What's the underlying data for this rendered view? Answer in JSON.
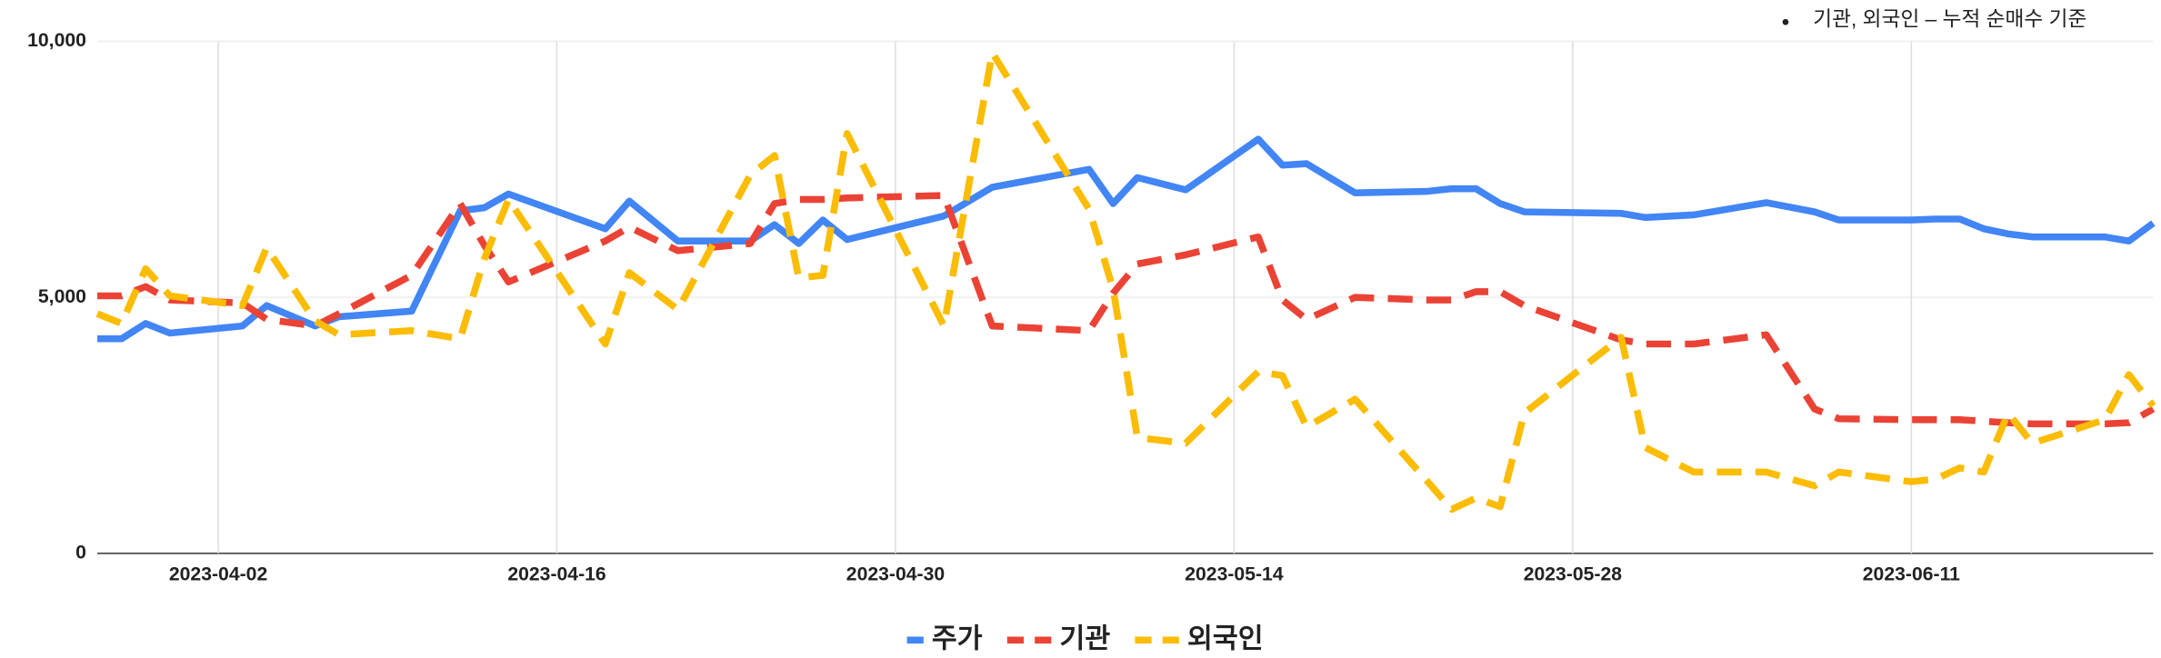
{
  "chart_data": {
    "type": "line",
    "annotation": "기관, 외국인 – 누적 순매수 기준",
    "x": [
      "2023-03-28",
      "2023-03-29",
      "2023-03-30",
      "2023-03-31",
      "2023-04-03",
      "2023-04-04",
      "2023-04-06",
      "2023-04-07",
      "2023-04-10",
      "2023-04-12",
      "2023-04-13",
      "2023-04-14",
      "2023-04-18",
      "2023-04-19",
      "2023-04-21",
      "2023-04-24",
      "2023-04-25",
      "2023-04-26",
      "2023-04-27",
      "2023-04-28",
      "2023-05-02",
      "2023-05-04",
      "2023-05-08",
      "2023-05-09",
      "2023-05-10",
      "2023-05-12",
      "2023-05-15",
      "2023-05-16",
      "2023-05-17",
      "2023-05-19",
      "2023-05-22",
      "2023-05-23",
      "2023-05-24",
      "2023-05-25",
      "2023-05-26",
      "2023-05-30",
      "2023-05-31",
      "2023-06-02",
      "2023-06-05",
      "2023-06-07",
      "2023-06-08",
      "2023-06-11",
      "2023-06-12",
      "2023-06-13",
      "2023-06-14",
      "2023-06-15",
      "2023-06-16",
      "2023-06-19",
      "2023-06-20",
      "2023-06-21"
    ],
    "series": [
      {
        "name": "주가",
        "color": "#4285f4",
        "dashed": false,
        "values": [
          4190,
          4190,
          4490,
          4300,
          4440,
          4840,
          4440,
          4620,
          4730,
          6690,
          6750,
          7020,
          6340,
          6880,
          6100,
          6100,
          6420,
          6050,
          6510,
          6130,
          6590,
          7150,
          7500,
          6830,
          7340,
          7100,
          8090,
          7580,
          7610,
          7040,
          7070,
          7120,
          7120,
          6830,
          6670,
          6640,
          6560,
          6610,
          6850,
          6670,
          6510,
          6510,
          6530,
          6530,
          6340,
          6240,
          6180,
          6180,
          6100,
          6450
        ]
      },
      {
        "name": "기관",
        "color": "#ea4335",
        "dashed": true,
        "values": [
          5030,
          5030,
          5210,
          4950,
          4890,
          4570,
          4440,
          4680,
          5430,
          6830,
          6020,
          5300,
          6100,
          6370,
          5910,
          6050,
          6830,
          6910,
          6910,
          6940,
          6990,
          4440,
          4350,
          5080,
          5650,
          5830,
          6180,
          4950,
          4570,
          5000,
          4950,
          4950,
          5110,
          5110,
          4840,
          4170,
          4090,
          4090,
          4270,
          2820,
          2630,
          2610,
          2610,
          2610,
          2580,
          2550,
          2530,
          2530,
          2550,
          2820
        ]
      },
      {
        "name": "외국인",
        "color": "#fbbc04",
        "dashed": true,
        "values": [
          4680,
          4490,
          5560,
          5030,
          4840,
          5970,
          4540,
          4270,
          4350,
          4190,
          5750,
          6910,
          4090,
          5480,
          4760,
          7390,
          7770,
          5380,
          5430,
          8200,
          4440,
          9780,
          6720,
          5160,
          2260,
          2150,
          3550,
          3470,
          2470,
          3010,
          1400,
          860,
          1080,
          910,
          2740,
          4220,
          2070,
          1590,
          1590,
          1320,
          1590,
          1400,
          1450,
          1670,
          1590,
          2740,
          2150,
          2610,
          3490,
          2880
        ]
      }
    ],
    "xlim": [
      "2023-03-28",
      "2023-06-21"
    ],
    "xticks": [
      "2023-04-02",
      "2023-04-16",
      "2023-04-30",
      "2023-05-14",
      "2023-05-28",
      "2023-06-11"
    ],
    "ylim": [
      0,
      10000
    ],
    "yticks": [
      0,
      {
        "value": 5000,
        "label": "5,000"
      },
      {
        "value": 10000,
        "label": "10,000"
      }
    ],
    "grid": true
  }
}
